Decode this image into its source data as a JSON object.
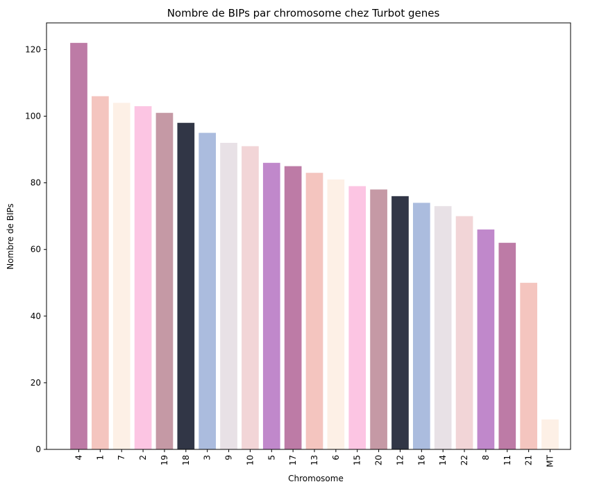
{
  "chart_data": {
    "type": "bar",
    "title": "Nombre de BIPs par chromosome chez Turbot genes",
    "xlabel": "Chromosome",
    "ylabel": "Nombre de BIPs",
    "categories": [
      "4",
      "1",
      "7",
      "2",
      "19",
      "18",
      "3",
      "9",
      "10",
      "5",
      "17",
      "13",
      "6",
      "15",
      "20",
      "12",
      "16",
      "14",
      "22",
      "8",
      "11",
      "21",
      "MT"
    ],
    "values": [
      122,
      106,
      104,
      103,
      101,
      98,
      95,
      92,
      91,
      86,
      85,
      83,
      81,
      79,
      78,
      76,
      74,
      73,
      70,
      66,
      62,
      50,
      9
    ],
    "colors": [
      "#bd7ba6",
      "#f4c5bf",
      "#fdf0e6",
      "#fcc5e3",
      "#c599a5",
      "#313646",
      "#abbcde",
      "#e8e1e6",
      "#f2d5d7",
      "#c088cb",
      "#bd7ba6",
      "#f4c5bf",
      "#fdf0e6",
      "#fcc5e3",
      "#c599a5",
      "#313646",
      "#abbcde",
      "#e8e1e6",
      "#f2d5d7",
      "#c088cb",
      "#bd7ba6",
      "#f4c5bf",
      "#fdf0e6"
    ],
    "ylim": [
      0,
      128
    ],
    "yticks": [
      0,
      20,
      40,
      60,
      80,
      100,
      120
    ],
    "grid": false,
    "legend": "none"
  }
}
